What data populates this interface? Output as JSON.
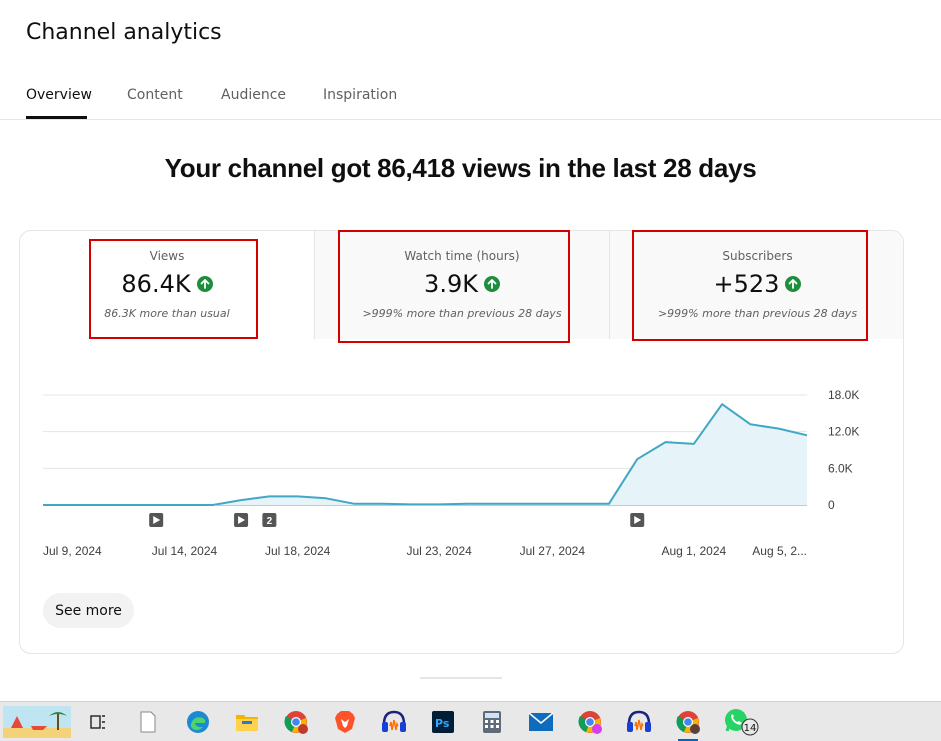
{
  "page": {
    "title": "Channel analytics"
  },
  "tabs": [
    {
      "label": "Overview",
      "active": true
    },
    {
      "label": "Content",
      "active": false
    },
    {
      "label": "Audience",
      "active": false
    },
    {
      "label": "Inspiration",
      "active": false
    }
  ],
  "headline": "Your channel got 86,418 views in the last 28 days",
  "metrics": [
    {
      "label": "Views",
      "value": "86.4K",
      "note": "86.3K more than usual",
      "trend": "up"
    },
    {
      "label": "Watch time (hours)",
      "value": "3.9K",
      "note": ">999% more than previous 28 days",
      "trend": "up"
    },
    {
      "label": "Subscribers",
      "value": "+523",
      "note": ">999% more than previous 28 days",
      "trend": "up"
    }
  ],
  "chart_data": {
    "type": "area",
    "series_name": "Views",
    "x_ticks": [
      "Jul 9, 2024",
      "Jul 14, 2024",
      "Jul 18, 2024",
      "Jul 23, 2024",
      "Jul 27, 2024",
      "Aug 1, 2024",
      "Aug 5, 2..."
    ],
    "y_ticks": [
      "18.0K",
      "12.0K",
      "6.0K",
      "0"
    ],
    "ylim": [
      0,
      18000
    ],
    "x": [
      "2024-07-09",
      "2024-07-10",
      "2024-07-11",
      "2024-07-12",
      "2024-07-13",
      "2024-07-14",
      "2024-07-15",
      "2024-07-16",
      "2024-07-17",
      "2024-07-18",
      "2024-07-19",
      "2024-07-20",
      "2024-07-21",
      "2024-07-22",
      "2024-07-23",
      "2024-07-24",
      "2024-07-25",
      "2024-07-26",
      "2024-07-27",
      "2024-07-28",
      "2024-07-29",
      "2024-07-30",
      "2024-07-31",
      "2024-08-01",
      "2024-08-02",
      "2024-08-03",
      "2024-08-04",
      "2024-08-05"
    ],
    "values": [
      0,
      0,
      0,
      0,
      0,
      0,
      0,
      800,
      1400,
      1400,
      1100,
      200,
      200,
      100,
      100,
      200,
      200,
      200,
      200,
      200,
      200,
      7500,
      10300,
      10000,
      16500,
      13200,
      12500,
      11400
    ],
    "markers": [
      {
        "date": "2024-07-13",
        "label": ""
      },
      {
        "date": "2024-07-16",
        "label": ""
      },
      {
        "date": "2024-07-17",
        "label": "2"
      },
      {
        "date": "2024-07-30",
        "label": ""
      }
    ],
    "colors": {
      "line": "#41a7c4",
      "fill": "#e6f3f8",
      "grid": "#e5e5e5"
    }
  },
  "see_more": {
    "label": "See more"
  },
  "taskbar": {
    "badge": "14",
    "items": [
      "beach-wallpaper-icon",
      "task-view-icon",
      "file-icon",
      "edge-icon",
      "file-explorer-icon",
      "chrome-icon",
      "brave-icon",
      "audacity-icon",
      "photoshop-icon",
      "calculator-icon",
      "mail-icon",
      "chrome-profile-icon",
      "audacity-icon",
      "chrome-icon",
      "whatsapp-icon"
    ]
  }
}
